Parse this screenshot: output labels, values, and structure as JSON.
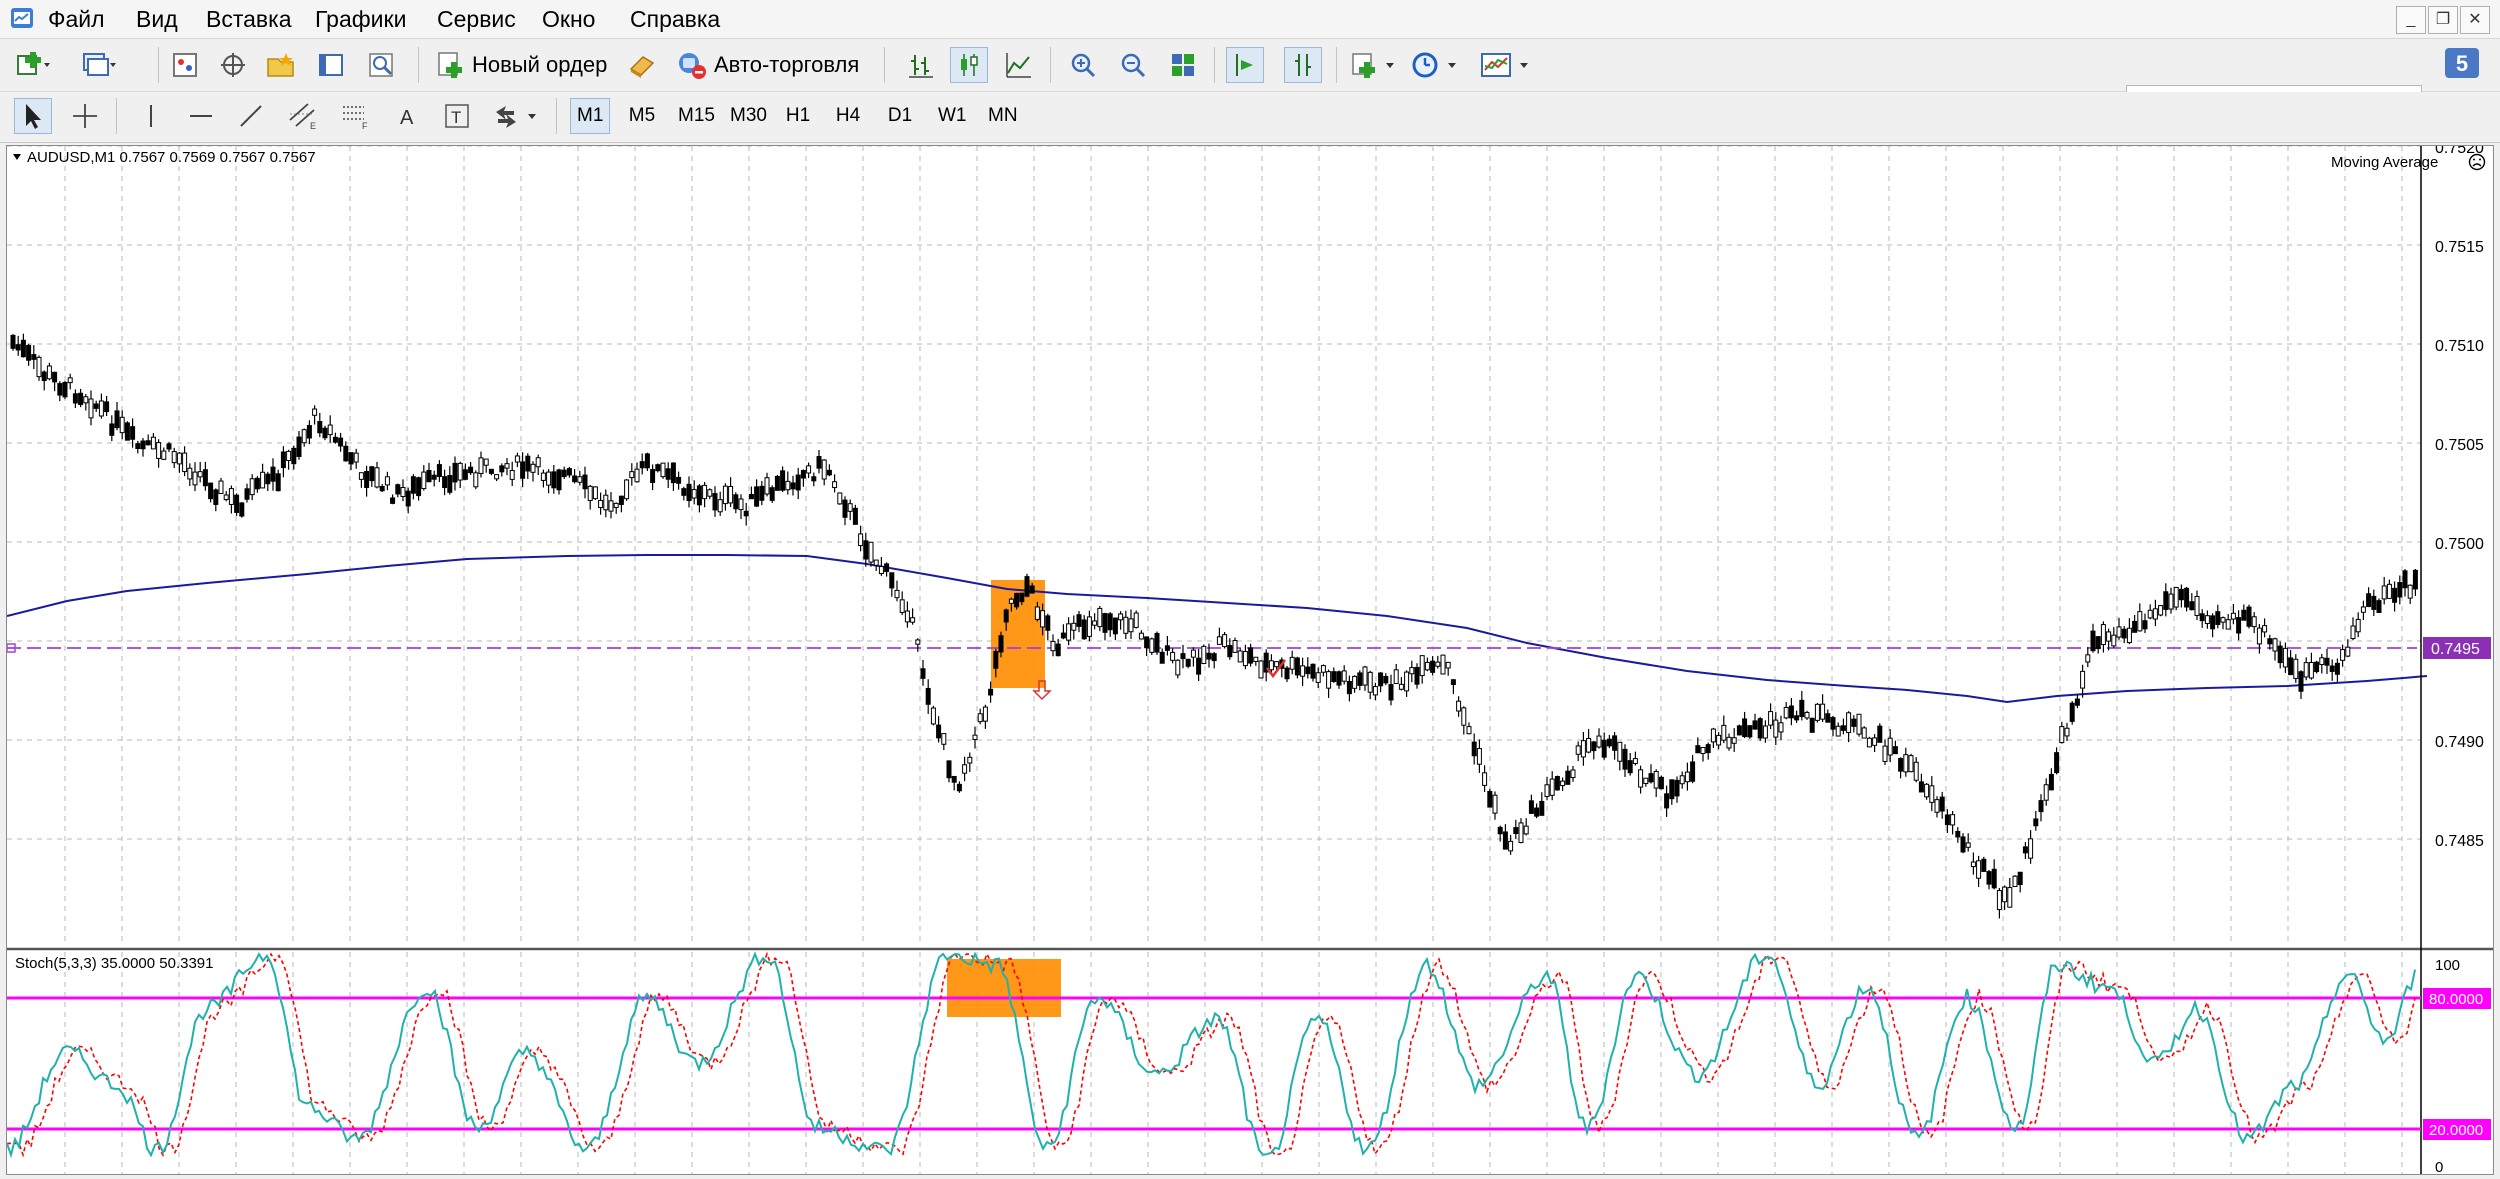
{
  "menu": {
    "items": [
      "Файл",
      "Вид",
      "Вставка",
      "Графики",
      "Сервис",
      "Окно",
      "Справка"
    ]
  },
  "window_controls": {
    "minimize": "_",
    "restore": "❐",
    "close": "✕"
  },
  "toolbar": {
    "new_order_label": "Новый ордер",
    "autotrading_label": "Авто-торговля",
    "search_placeholder": "",
    "timeframes": [
      "M1",
      "M5",
      "M15",
      "M30",
      "H1",
      "H4",
      "D1",
      "W1",
      "MN"
    ],
    "active_timeframe": "M1",
    "drawing_tools": [
      "cursor-icon",
      "crosshair-icon",
      "vertical-line-icon",
      "horizontal-line-icon",
      "trendline-icon",
      "equidistant-channel-icon",
      "fibonacci-icon",
      "text-icon",
      "text-label-icon",
      "arrows-icon"
    ]
  },
  "chart": {
    "symbol_header": "AUDUSD,M1  0.7567 0.7569 0.7567 0.7567",
    "ea_label": "Moving Average",
    "ea_icon": "sad-face-icon",
    "current_price": "0.7495",
    "price_ticks": [
      "0.7520",
      "0.7515",
      "0.7510",
      "0.7505",
      "0.7500",
      "0.7495",
      "0.7490",
      "0.7485"
    ],
    "colors": {
      "ma_line": "#1a1aa0",
      "bid_line": "#a040e0",
      "highlight": "#ff8c00",
      "candle": "#000000",
      "grid": "#b0b0b0"
    }
  },
  "indicator": {
    "header": "Stoch(5,3,3) 35.0000 50.3391",
    "level_high": "80.0000",
    "level_low": "20.0000",
    "scale_top": "100",
    "scale_bottom": "0",
    "colors": {
      "main": "#20b2aa",
      "signal": "#ff0000",
      "levels": "#ff00ff"
    }
  }
}
